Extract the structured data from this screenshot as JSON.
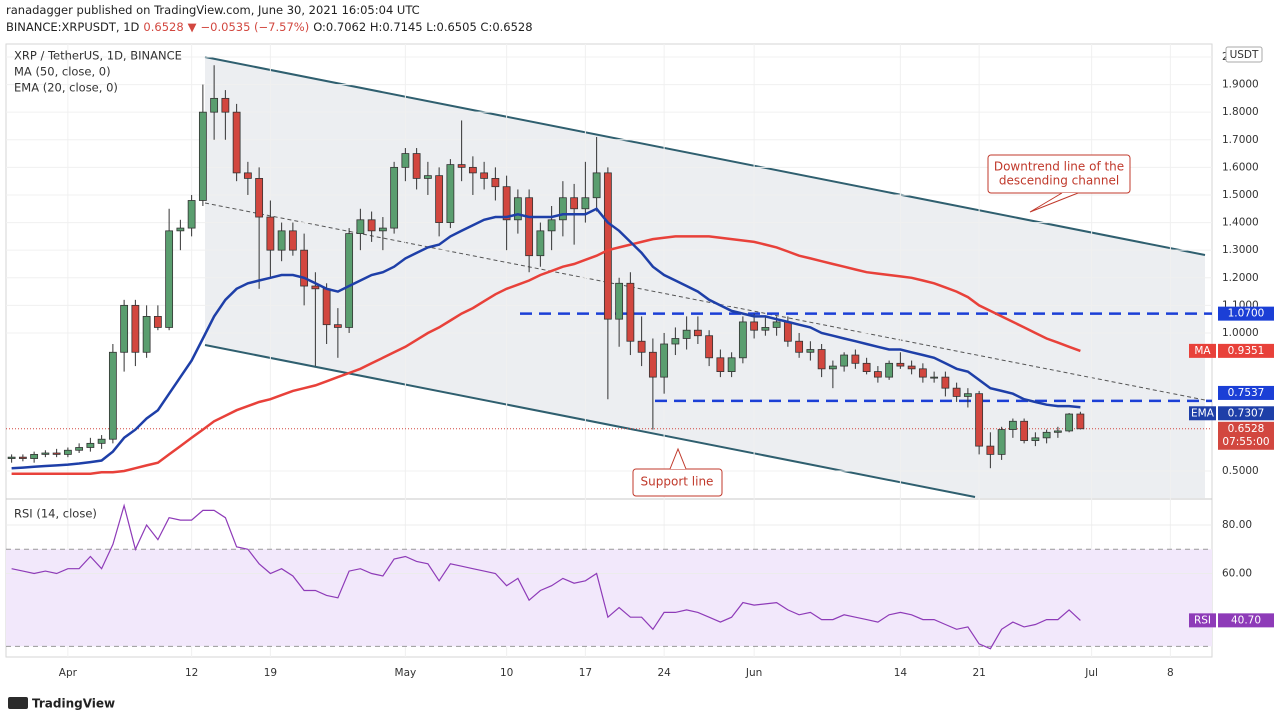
{
  "header": {
    "published": "ranadagger published on TradingView.com, June 30, 2021 16:05:04 UTC",
    "symbol": "BINANCE:XRPUSDT, 1D",
    "last": "0.6528",
    "arrow": "▼",
    "change": "−0.0535 (−7.57%)",
    "ohlc": "O:0.7062 H:0.7145 L:0.6505 C:0.6528"
  },
  "footer": "TradingView",
  "chart_data": {
    "type": "candlestick",
    "title": "XRP / TetherUS, 1D, BINANCE",
    "currency": "USDT",
    "candles": {
      "up_color": "#5a9e6f",
      "down_color": "#d2473f",
      "open": [
        0.545,
        0.55,
        0.545,
        0.56,
        0.565,
        0.56,
        0.575,
        0.585,
        0.6,
        0.615,
        0.93,
        1.1,
        0.93,
        1.06,
        1.02,
        1.37,
        1.38,
        1.48,
        1.8,
        1.85,
        1.8,
        1.58,
        1.56,
        1.42,
        1.3,
        1.37,
        1.3,
        1.17,
        1.16,
        1.03,
        1.02,
        1.36,
        1.41,
        1.37,
        1.38,
        1.6,
        1.65,
        1.56,
        1.57,
        1.4,
        1.61,
        1.6,
        1.58,
        1.56,
        1.53,
        1.41,
        1.49,
        1.28,
        1.37,
        1.41,
        1.49,
        1.45,
        1.49,
        1.58,
        1.05,
        1.18,
        0.97,
        0.93,
        0.84,
        0.96,
        0.98,
        1.01,
        0.99,
        0.91,
        0.86,
        0.91,
        1.04,
        1.01,
        1.02,
        1.04,
        0.97,
        0.93,
        0.94,
        0.87,
        0.88,
        0.92,
        0.89,
        0.86,
        0.84,
        0.89,
        0.88,
        0.87,
        0.84,
        0.84,
        0.8,
        0.77,
        0.78,
        0.59,
        0.56,
        0.65,
        0.68,
        0.61,
        0.62,
        0.64,
        0.645,
        0.7062
      ],
      "high": [
        0.56,
        0.56,
        0.57,
        0.575,
        0.58,
        0.585,
        0.6,
        0.62,
        0.63,
        0.96,
        1.12,
        1.12,
        1.1,
        1.1,
        1.45,
        1.41,
        1.5,
        1.9,
        1.97,
        1.88,
        1.83,
        1.62,
        1.6,
        1.48,
        1.4,
        1.4,
        1.36,
        1.22,
        1.18,
        1.09,
        1.38,
        1.45,
        1.44,
        1.42,
        1.62,
        1.67,
        1.67,
        1.62,
        1.6,
        1.63,
        1.77,
        1.64,
        1.62,
        1.6,
        1.57,
        1.52,
        1.52,
        1.4,
        1.46,
        1.55,
        1.54,
        1.62,
        1.71,
        1.6,
        1.2,
        1.22,
        1.06,
        0.98,
        1.0,
        1.02,
        1.06,
        1.06,
        1.01,
        0.94,
        0.93,
        1.06,
        1.07,
        1.06,
        1.06,
        1.06,
        1.0,
        0.97,
        0.96,
        0.9,
        0.93,
        0.94,
        0.91,
        0.88,
        0.9,
        0.93,
        0.9,
        0.89,
        0.86,
        0.86,
        0.82,
        0.8,
        0.79,
        0.64,
        0.66,
        0.69,
        0.69,
        0.64,
        0.65,
        0.66,
        0.71,
        0.7145
      ],
      "low": [
        0.53,
        0.535,
        0.53,
        0.55,
        0.55,
        0.55,
        0.565,
        0.57,
        0.58,
        0.6,
        0.86,
        0.88,
        0.91,
        1.01,
        1.01,
        1.3,
        1.35,
        1.46,
        1.7,
        1.7,
        1.55,
        1.5,
        1.16,
        1.2,
        1.26,
        1.28,
        1.1,
        0.88,
        0.96,
        0.91,
        1.0,
        1.3,
        1.33,
        1.3,
        1.36,
        1.55,
        1.52,
        1.5,
        1.35,
        1.38,
        1.55,
        1.5,
        1.52,
        1.48,
        1.3,
        1.36,
        1.22,
        1.24,
        1.3,
        1.35,
        1.32,
        1.4,
        1.44,
        0.76,
        0.95,
        0.92,
        0.88,
        0.65,
        0.78,
        0.92,
        0.94,
        0.96,
        0.88,
        0.84,
        0.84,
        0.89,
        0.98,
        0.99,
        0.99,
        0.95,
        0.91,
        0.9,
        0.84,
        0.8,
        0.86,
        0.87,
        0.85,
        0.82,
        0.83,
        0.87,
        0.85,
        0.82,
        0.82,
        0.77,
        0.75,
        0.73,
        0.56,
        0.51,
        0.54,
        0.62,
        0.6,
        0.59,
        0.6,
        0.62,
        0.64,
        0.6505
      ],
      "close": [
        0.55,
        0.545,
        0.56,
        0.565,
        0.56,
        0.575,
        0.585,
        0.6,
        0.615,
        0.93,
        1.1,
        0.93,
        1.06,
        1.02,
        1.37,
        1.38,
        1.48,
        1.8,
        1.85,
        1.8,
        1.58,
        1.56,
        1.42,
        1.3,
        1.37,
        1.3,
        1.17,
        1.16,
        1.03,
        1.02,
        1.36,
        1.41,
        1.37,
        1.38,
        1.6,
        1.65,
        1.56,
        1.57,
        1.4,
        1.61,
        1.6,
        1.58,
        1.56,
        1.53,
        1.41,
        1.49,
        1.28,
        1.37,
        1.41,
        1.49,
        1.45,
        1.49,
        1.58,
        1.05,
        1.18,
        0.97,
        0.93,
        0.84,
        0.96,
        0.98,
        1.01,
        0.99,
        0.91,
        0.86,
        0.91,
        1.04,
        1.01,
        1.02,
        1.04,
        0.97,
        0.93,
        0.94,
        0.87,
        0.88,
        0.92,
        0.89,
        0.86,
        0.84,
        0.89,
        0.88,
        0.87,
        0.84,
        0.84,
        0.8,
        0.77,
        0.78,
        0.59,
        0.56,
        0.65,
        0.68,
        0.61,
        0.62,
        0.64,
        0.645,
        0.7062,
        0.6528
      ]
    },
    "series": [
      {
        "name": "MA",
        "legend": "MA (50, close, 0)",
        "color": "#e8413a",
        "last_label": "0.9351",
        "values": [
          0.49,
          0.49,
          0.49,
          0.49,
          0.49,
          0.49,
          0.49,
          0.49,
          0.495,
          0.495,
          0.5,
          0.51,
          0.52,
          0.53,
          0.56,
          0.59,
          0.62,
          0.65,
          0.68,
          0.7,
          0.72,
          0.735,
          0.75,
          0.76,
          0.775,
          0.79,
          0.8,
          0.81,
          0.825,
          0.84,
          0.855,
          0.87,
          0.89,
          0.91,
          0.93,
          0.95,
          0.975,
          1.0,
          1.02,
          1.045,
          1.07,
          1.09,
          1.115,
          1.14,
          1.16,
          1.175,
          1.19,
          1.21,
          1.225,
          1.24,
          1.25,
          1.265,
          1.28,
          1.3,
          1.31,
          1.32,
          1.33,
          1.34,
          1.345,
          1.35,
          1.35,
          1.35,
          1.35,
          1.345,
          1.34,
          1.335,
          1.33,
          1.32,
          1.31,
          1.295,
          1.28,
          1.27,
          1.26,
          1.25,
          1.24,
          1.23,
          1.22,
          1.215,
          1.21,
          1.205,
          1.2,
          1.19,
          1.18,
          1.165,
          1.15,
          1.13,
          1.1,
          1.08,
          1.06,
          1.04,
          1.02,
          1.0,
          0.98,
          0.965,
          0.95,
          0.9351
        ]
      },
      {
        "name": "EMA",
        "legend": "EMA (20, close, 0)",
        "color": "#1e3fa8",
        "last_label": "0.7307",
        "values": [
          0.51,
          0.512,
          0.515,
          0.518,
          0.52,
          0.523,
          0.527,
          0.532,
          0.538,
          0.57,
          0.62,
          0.65,
          0.69,
          0.72,
          0.78,
          0.84,
          0.9,
          0.98,
          1.06,
          1.12,
          1.16,
          1.18,
          1.19,
          1.2,
          1.21,
          1.21,
          1.2,
          1.18,
          1.16,
          1.15,
          1.17,
          1.19,
          1.21,
          1.22,
          1.24,
          1.27,
          1.29,
          1.31,
          1.32,
          1.35,
          1.37,
          1.39,
          1.41,
          1.42,
          1.42,
          1.43,
          1.42,
          1.42,
          1.42,
          1.43,
          1.43,
          1.43,
          1.45,
          1.4,
          1.37,
          1.33,
          1.29,
          1.24,
          1.21,
          1.19,
          1.17,
          1.15,
          1.12,
          1.1,
          1.08,
          1.07,
          1.06,
          1.06,
          1.05,
          1.04,
          1.03,
          1.02,
          1.0,
          0.99,
          0.98,
          0.97,
          0.96,
          0.95,
          0.94,
          0.94,
          0.93,
          0.92,
          0.91,
          0.89,
          0.87,
          0.86,
          0.83,
          0.8,
          0.79,
          0.78,
          0.76,
          0.75,
          0.74,
          0.735,
          0.735,
          0.7307
        ]
      }
    ],
    "levels": [
      {
        "value": 1.07,
        "label": "1.0700"
      },
      {
        "value": 0.7537,
        "label": "0.7537"
      }
    ],
    "last_price": {
      "value": 0.6528,
      "label": "0.6528",
      "countdown": "07:55:00"
    },
    "ylim": [
      0.402,
      2.047
    ],
    "yticks": [
      {
        "value": 0.5,
        "label": "0.5000"
      },
      {
        "value": 1.0,
        "label": "1.0000"
      },
      {
        "value": 1.1,
        "label": "1.1000"
      },
      {
        "value": 1.2,
        "label": "1.2000"
      },
      {
        "value": 1.3,
        "label": "1.3000"
      },
      {
        "value": 1.4,
        "label": "1.4000"
      },
      {
        "value": 1.5,
        "label": "1.5000"
      },
      {
        "value": 1.6,
        "label": "1.6000"
      },
      {
        "value": 1.7,
        "label": "1.7000"
      },
      {
        "value": 1.8,
        "label": "1.8000"
      },
      {
        "value": 1.9,
        "label": "1.9000"
      },
      2
    ],
    "xlim": [
      -0.5,
      106.7
    ],
    "xticks": [
      {
        "value": 5,
        "label": "Apr"
      },
      {
        "value": 16,
        "label": "12"
      },
      {
        "value": 23,
        "label": "19"
      },
      {
        "value": 35,
        "label": "May"
      },
      {
        "value": 44,
        "label": "10"
      },
      {
        "value": 51,
        "label": "17"
      },
      {
        "value": 58,
        "label": "24"
      },
      {
        "value": 66,
        "label": "Jun"
      },
      {
        "value": 79,
        "label": "14"
      },
      {
        "value": 86,
        "label": "21"
      },
      {
        "value": 96,
        "label": "Jul"
      },
      {
        "value": 103,
        "label": "8"
      }
    ],
    "annotations": [
      {
        "text": [
          "Downtrend line of the",
          "descending channel"
        ]
      },
      {
        "text": [
          "Support line"
        ]
      }
    ],
    "rsi": {
      "name": "RSI",
      "legend": "RSI (14, close)",
      "color": "#8e3bb8",
      "last_label": "40.70",
      "band": [
        30,
        70
      ],
      "ylim": [
        25.6,
        90.3
      ],
      "yticks": [
        {
          "value": 60,
          "label": "60.00"
        },
        {
          "value": 80,
          "label": "80.00"
        }
      ],
      "values": [
        62,
        61,
        60,
        61,
        60,
        62,
        62,
        67,
        62,
        72,
        88,
        70,
        80,
        74,
        83,
        82,
        82,
        86,
        86,
        83,
        71,
        70,
        64,
        60,
        62,
        59,
        53,
        53,
        51,
        50,
        61,
        62,
        60,
        59,
        66,
        67,
        65,
        64,
        57,
        64,
        63,
        62,
        61,
        60,
        55,
        58,
        49,
        53,
        55,
        58,
        56,
        57,
        60,
        42,
        46,
        42,
        42,
        37,
        44,
        44,
        45,
        44,
        42,
        40,
        42,
        48,
        47,
        47.5,
        48,
        45,
        43,
        44,
        41,
        41,
        43,
        42,
        41,
        40,
        43,
        44,
        43,
        41,
        41,
        39,
        37,
        38,
        31,
        29,
        37,
        40,
        38,
        39,
        41,
        41,
        45,
        40.7
      ]
    }
  }
}
